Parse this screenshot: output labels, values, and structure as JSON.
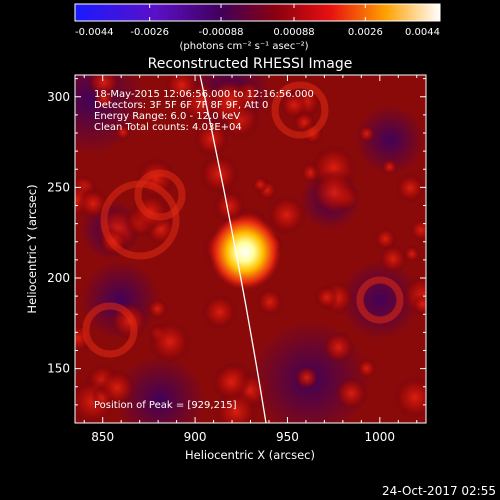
{
  "colorbar": {
    "tick_labels": [
      "-0.0044",
      "-0.0026",
      "-0.00088",
      "0.00088",
      "0.0026",
      "0.0044"
    ],
    "tick_values": [
      -0.0044,
      -0.0026,
      -0.00088,
      0.00088,
      0.0026,
      0.0044
    ],
    "range": [
      -0.0044,
      0.0044
    ],
    "units_label": "(photons cm⁻² s⁻¹ asec⁻²)"
  },
  "title": "Reconstructed RHESSI Image",
  "info": {
    "line1": "18-May-2015 12:06:56.000 to 12:16:56.000",
    "line2": "Detectors: 3F 5F 6F 7F 8F 9F, Att 0",
    "line3": "Energy Range: 6.0 - 12.0 keV",
    "line4": "Clean    Total counts: 4.03E+04"
  },
  "peak_note": "Position of Peak = [929,215]",
  "footer_date": "24-Oct-2017 02:55",
  "chart_data": {
    "type": "heatmap",
    "title": "Reconstructed RHESSI Image",
    "xlabel": "Heliocentric X (arcsec)",
    "ylabel": "Heliocentric Y (arcsec)",
    "xlim": [
      835,
      1025
    ],
    "ylim": [
      120,
      312
    ],
    "xticks": [
      850,
      900,
      950,
      1000
    ],
    "yticks": [
      150,
      200,
      250,
      300
    ],
    "xtick_labels": [
      "850",
      "900",
      "950",
      "1000"
    ],
    "ytick_labels": [
      "150",
      "200",
      "250",
      "300"
    ],
    "peak": [
      929,
      215
    ],
    "colormap": "blue-purple-red-yellow-white",
    "colors": {
      "negative": "#1a1aff",
      "zero": "#400058",
      "mid": "#e01010",
      "high": "#ffb000",
      "max": "#ffffff"
    }
  }
}
